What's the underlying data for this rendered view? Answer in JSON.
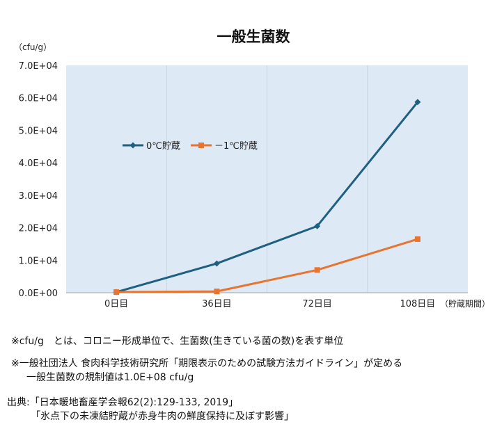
{
  "chart_data": {
    "type": "line",
    "title": "一般生菌数",
    "ylabel": "（cfu/g）",
    "xlabel": "（貯蔵期間）",
    "categories": [
      "0日目",
      "36日目",
      "72日目",
      "108日目"
    ],
    "ylim": [
      0,
      70000
    ],
    "yticks": [
      {
        "value": 0,
        "label": "0.0E+00"
      },
      {
        "value": 10000,
        "label": "1.0E+04"
      },
      {
        "value": 20000,
        "label": "2.0E+04"
      },
      {
        "value": 30000,
        "label": "3.0E+04"
      },
      {
        "value": 40000,
        "label": "4.0E+04"
      },
      {
        "value": 50000,
        "label": "5.0E+04"
      },
      {
        "value": 60000,
        "label": "6.0E+04"
      },
      {
        "value": 70000,
        "label": "7.0E+04"
      }
    ],
    "series": [
      {
        "name": "0℃貯蔵",
        "color": "#1f5f80",
        "marker": "diamond",
        "values": [
          200,
          9000,
          20500,
          58700
        ]
      },
      {
        "name": "－1℃貯蔵",
        "color": "#e8742f",
        "marker": "square",
        "values": [
          200,
          400,
          7000,
          16500
        ]
      }
    ],
    "plot_background": "#dde9f5",
    "grid": "vertical"
  },
  "notes": {
    "note1": "※cfu/g　とは、コロニー形成単位で、生菌数(生きている菌の数)を表す単位",
    "note2_line1": "※一般社団法人 食肉科学技術研究所「期限表示のための試験方法ガイドライン」が定める",
    "note2_line2": "一般生菌数の規制値は1.0E+08 cfu/g",
    "source_line1": "出典:「日本暖地畜産学会報62(2):129-133, 2019」",
    "source_line2": "「氷点下の未凍結貯蔵が赤身牛肉の鮮度保持に及ぼす影響」"
  }
}
